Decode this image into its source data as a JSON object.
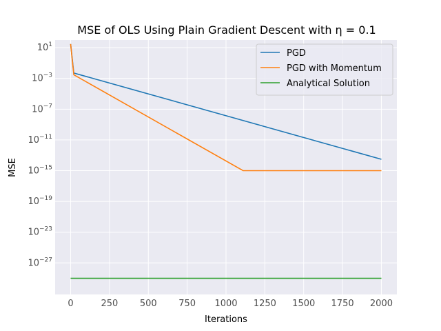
{
  "chart_data": {
    "type": "line",
    "title": "MSE of OLS Using Plain Gradient Descent with η = 0.1",
    "xlabel": "Iterations",
    "ylabel": "MSE",
    "yscale": "log",
    "xlim": [
      -100,
      2100
    ],
    "ylim_exponent": [
      -31.1,
      2.0
    ],
    "xticks": [
      0,
      250,
      500,
      750,
      1000,
      1250,
      1500,
      1750,
      2000
    ],
    "yticks_exponent": [
      1,
      -3,
      -7,
      -11,
      -15,
      -19,
      -23,
      -27
    ],
    "grid": true,
    "legend_position": "top-right",
    "series": [
      {
        "name": "PGD",
        "color": "#1f77b4",
        "points": [
          [
            0,
            30
          ],
          [
            20,
            0.005
          ],
          [
            2000,
            3e-14
          ]
        ]
      },
      {
        "name": "PGD with Momentum",
        "color": "#ff7f0e",
        "points": [
          [
            0,
            30
          ],
          [
            20,
            0.003
          ],
          [
            1110,
            1e-15
          ],
          [
            2000,
            1e-15
          ]
        ]
      },
      {
        "name": "Analytical Solution",
        "color": "#2ca02c",
        "points": [
          [
            0,
            1e-29
          ],
          [
            2000,
            1e-29
          ]
        ]
      }
    ]
  }
}
